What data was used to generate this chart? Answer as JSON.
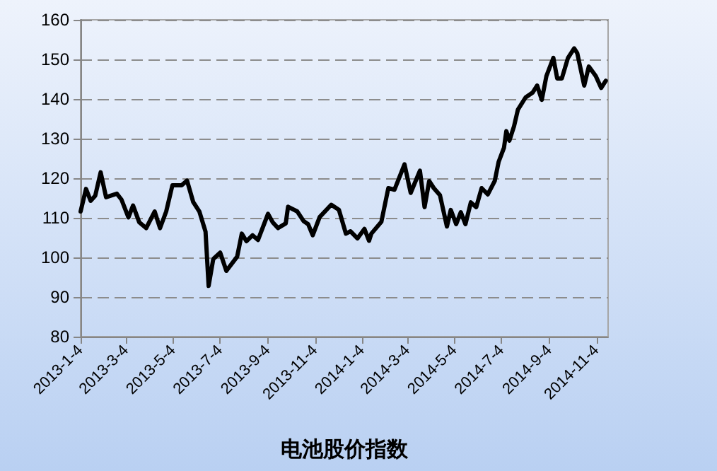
{
  "chart_data": {
    "type": "line",
    "xlabel": "电池股价指数",
    "x": [
      "2013-01-04",
      "2013-01-11",
      "2013-01-17",
      "2013-01-23",
      "2013-01-30",
      "2013-02-06",
      "2013-02-20",
      "2013-02-26",
      "2013-03-07",
      "2013-03-13",
      "2013-03-21",
      "2013-03-30",
      "2013-04-10",
      "2013-04-17",
      "2013-04-25",
      "2013-05-03",
      "2013-05-15",
      "2013-05-22",
      "2013-05-30",
      "2013-06-07",
      "2013-06-15",
      "2013-06-19",
      "2013-06-25",
      "2013-07-04",
      "2013-07-12",
      "2013-07-26",
      "2013-08-01",
      "2013-08-07",
      "2013-08-15",
      "2013-08-22",
      "2013-09-04",
      "2013-09-10",
      "2013-09-17",
      "2013-09-27",
      "2013-09-30",
      "2013-10-12",
      "2013-10-20",
      "2013-10-26",
      "2013-11-01",
      "2013-11-10",
      "2013-11-25",
      "2013-12-05",
      "2013-12-14",
      "2013-12-20",
      "2013-12-29",
      "2014-01-07",
      "2014-01-13",
      "2014-01-16",
      "2014-01-29",
      "2014-02-07",
      "2014-02-15",
      "2014-02-28",
      "2014-03-08",
      "2014-03-20",
      "2014-03-26",
      "2014-04-01",
      "2014-04-07",
      "2014-04-15",
      "2014-04-24",
      "2014-04-29",
      "2014-05-06",
      "2014-05-12",
      "2014-05-18",
      "2014-05-25",
      "2014-06-01",
      "2014-06-08",
      "2014-06-16",
      "2014-06-25",
      "2014-06-30",
      "2014-07-07",
      "2014-07-10",
      "2014-07-14",
      "2014-07-20",
      "2014-07-25",
      "2014-08-04",
      "2014-08-13",
      "2014-08-19",
      "2014-08-25",
      "2014-08-31",
      "2014-09-09",
      "2014-09-14",
      "2014-09-20",
      "2014-09-28",
      "2014-10-06",
      "2014-10-10",
      "2014-10-19",
      "2014-10-25",
      "2014-11-03",
      "2014-11-10",
      "2014-11-16"
    ],
    "series": [
      {
        "color": "#000000",
        "values": [
          111.6,
          117.3,
          114.3,
          115.6,
          121.5,
          115.2,
          116.1,
          114.6,
          110.1,
          113.1,
          108.9,
          107.4,
          111.6,
          107.4,
          111.6,
          118.2,
          118.2,
          119.4,
          114,
          111.6,
          106.5,
          92.8,
          99.6,
          101.2,
          96.6,
          100.2,
          106,
          104.1,
          105.6,
          104.4,
          111,
          108.9,
          107.4,
          108.6,
          112.8,
          111.6,
          109.2,
          108.4,
          105.6,
          110.2,
          113.3,
          112,
          106,
          106.6,
          104.8,
          107.2,
          104.2,
          106,
          109,
          117.5,
          117.1,
          123.5,
          116.3,
          121.9,
          112.7,
          119.3,
          117.5,
          115.7,
          107.8,
          112,
          108.4,
          111.4,
          108.4,
          113.9,
          112.7,
          117.5,
          115.9,
          119.3,
          124.1,
          127.7,
          131.9,
          129.5,
          133.1,
          137.3,
          140.4,
          141.6,
          143.4,
          139.8,
          145.8,
          150.4,
          145.2,
          145.2,
          150.4,
          152.8,
          151.6,
          143.4,
          148.2,
          145.8,
          142.8,
          144.6
        ]
      }
    ],
    "xlim": [
      "2013-01-04",
      "2014-11-19"
    ],
    "xticks": [
      {
        "value": "2013-01-04",
        "label": "2013-1-4"
      },
      {
        "value": "2013-03-04",
        "label": "2013-3-4"
      },
      {
        "value": "2013-05-04",
        "label": "2013-5-4"
      },
      {
        "value": "2013-07-04",
        "label": "2013-7-4"
      },
      {
        "value": "2013-09-04",
        "label": "2013-9-4"
      },
      {
        "value": "2013-11-04",
        "label": "2013-11-4"
      },
      {
        "value": "2014-01-04",
        "label": "2014-1-4"
      },
      {
        "value": "2014-03-04",
        "label": "2014-3-4"
      },
      {
        "value": "2014-05-04",
        "label": "2014-5-4"
      },
      {
        "value": "2014-07-04",
        "label": "2014-7-4"
      },
      {
        "value": "2014-09-04",
        "label": "2014-9-4"
      },
      {
        "value": "2014-11-04",
        "label": "2014-11-4"
      }
    ],
    "ylim": [
      80,
      160
    ],
    "yticks": [
      80,
      90,
      100,
      110,
      120,
      130,
      140,
      150,
      160
    ],
    "grid": "y",
    "marker": "none",
    "line_style": "solid"
  }
}
